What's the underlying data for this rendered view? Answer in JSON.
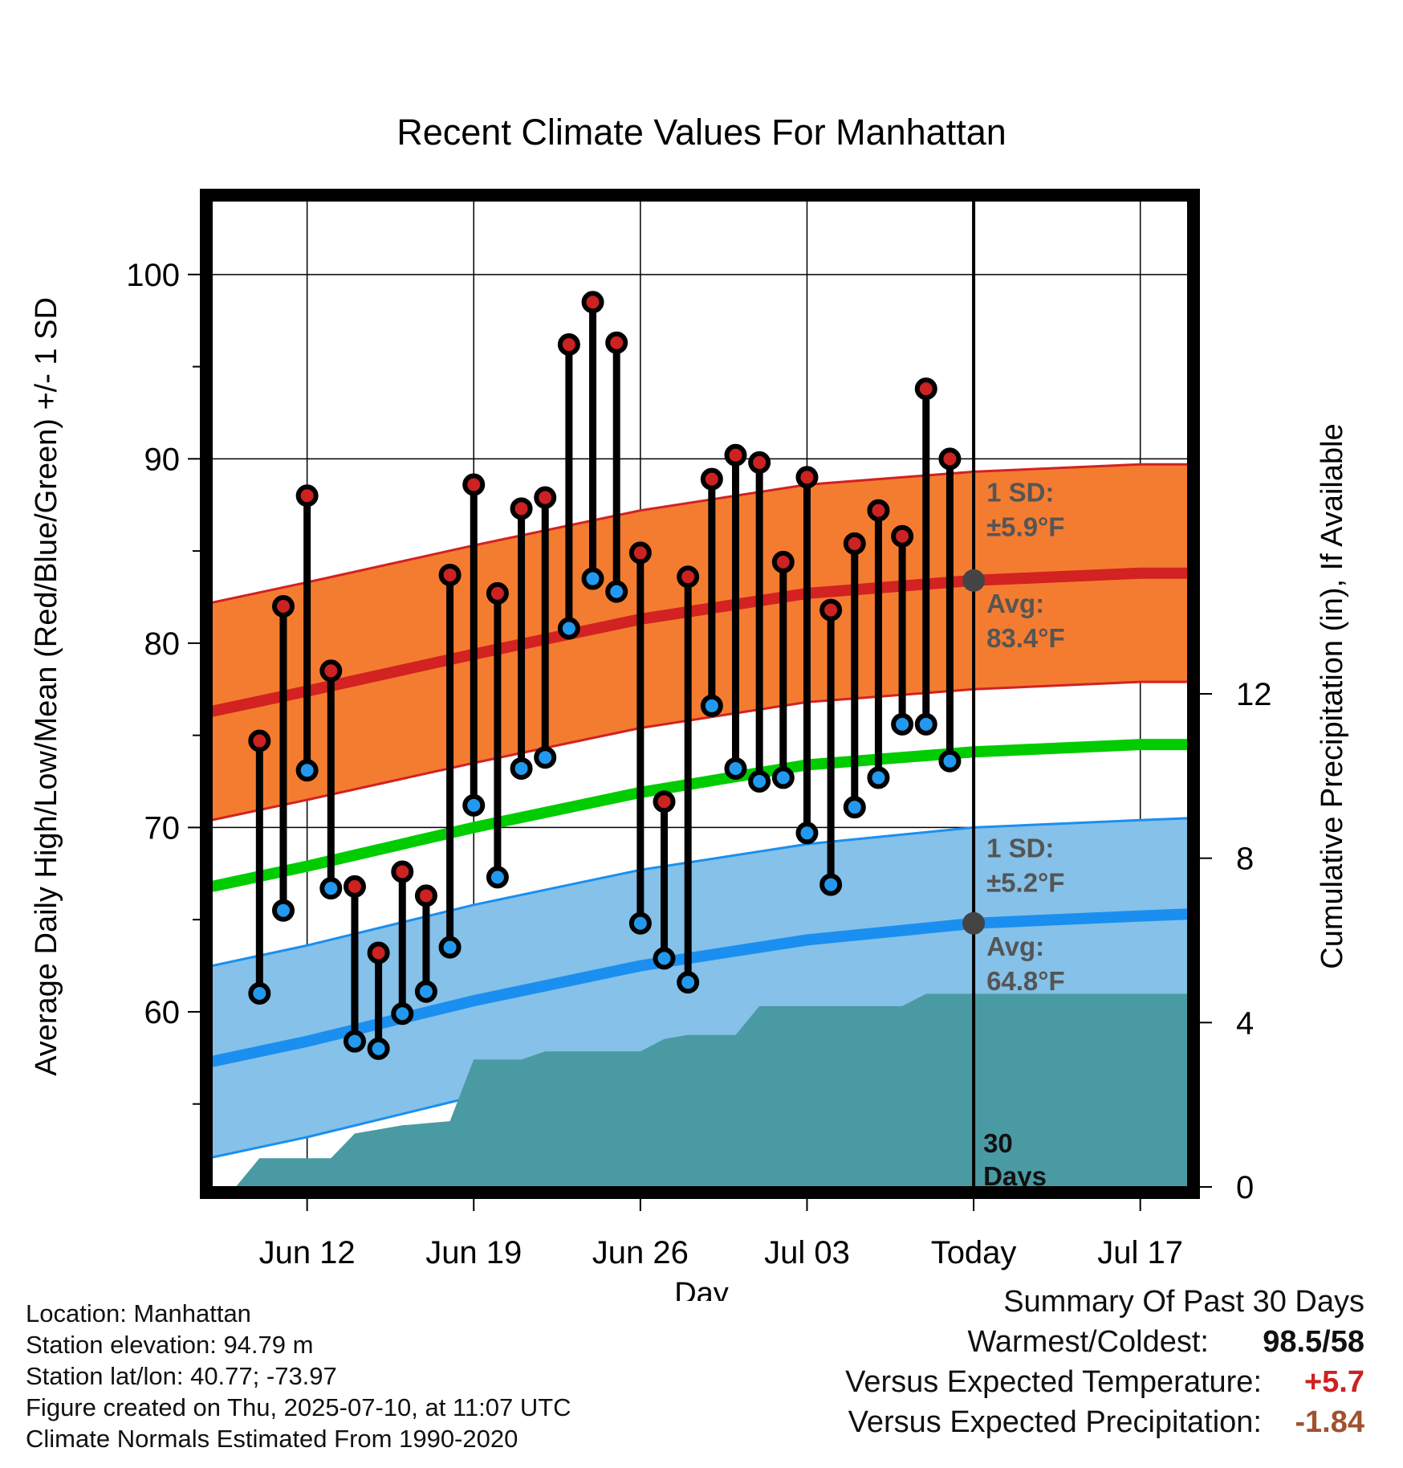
{
  "chart_data": {
    "type": "line",
    "title": "Recent Climate Values For Manhattan",
    "xlabel": "Day",
    "ylabel": "Average Daily High/Low/Mean (Red/Blue/Green) +/- 1 SD",
    "y2label": "Cumulative Precipitation (in), If Available",
    "ylim": [
      50.5,
      104
    ],
    "y_ticks": [
      60,
      70,
      80,
      90,
      100
    ],
    "y2lim": [
      0,
      24
    ],
    "y2_ticks": [
      0,
      4,
      8,
      12
    ],
    "x_ticks": [
      {
        "date": "2025-06-12",
        "label": "Jun 12"
      },
      {
        "date": "2025-06-19",
        "label": "Jun 19"
      },
      {
        "date": "2025-06-26",
        "label": "Jun 26"
      },
      {
        "date": "2025-07-03",
        "label": "Jul 03"
      },
      {
        "date": "2025-07-10",
        "label": "Today"
      },
      {
        "date": "2025-07-17",
        "label": "Jul 17"
      }
    ],
    "xlim": [
      "2025-06-08",
      "2025-07-19"
    ],
    "grid": true,
    "today": "2025-07-10",
    "dates": [
      "2025-06-10",
      "2025-06-11",
      "2025-06-12",
      "2025-06-13",
      "2025-06-14",
      "2025-06-15",
      "2025-06-16",
      "2025-06-17",
      "2025-06-18",
      "2025-06-19",
      "2025-06-20",
      "2025-06-21",
      "2025-06-22",
      "2025-06-23",
      "2025-06-24",
      "2025-06-25",
      "2025-06-26",
      "2025-06-27",
      "2025-06-28",
      "2025-06-29",
      "2025-06-30",
      "2025-07-01",
      "2025-07-02",
      "2025-07-03",
      "2025-07-04",
      "2025-07-05",
      "2025-07-06",
      "2025-07-07",
      "2025-07-08",
      "2025-07-09"
    ],
    "series": [
      {
        "name": "Daily High",
        "color": "#cc2222",
        "values": [
          74.7,
          82,
          88,
          78.5,
          66.8,
          63.2,
          67.6,
          66.3,
          83.7,
          88.6,
          82.7,
          87.3,
          87.9,
          96.2,
          98.5,
          96.3,
          84.9,
          71.4,
          83.6,
          88.9,
          90.2,
          89.8,
          84.4,
          89,
          81.8,
          85.4,
          87.2,
          85.8,
          93.8,
          90
        ]
      },
      {
        "name": "Daily Low",
        "color": "#2299ee",
        "values": [
          61,
          65.5,
          73.1,
          66.7,
          58.4,
          58,
          59.9,
          61.1,
          63.5,
          71.2,
          67.3,
          73.2,
          73.8,
          80.8,
          83.5,
          82.8,
          64.8,
          62.9,
          61.6,
          76.6,
          73.2,
          72.5,
          72.7,
          69.7,
          66.9,
          71.1,
          72.7,
          75.6,
          75.6,
          73.6
        ]
      }
    ],
    "normals": {
      "dates": [
        "2025-06-08",
        "2025-06-12",
        "2025-06-19",
        "2025-06-26",
        "2025-07-03",
        "2025-07-10",
        "2025-07-17",
        "2025-07-19"
      ],
      "high_avg": [
        76.3,
        77.4,
        79.4,
        81.3,
        82.7,
        83.4,
        83.8,
        83.8
      ],
      "low_avg": [
        57.3,
        58.4,
        60.6,
        62.5,
        63.9,
        64.8,
        65.2,
        65.3
      ],
      "mean_avg": [
        66.8,
        67.9,
        70,
        71.9,
        73.4,
        74.1,
        74.5,
        74.5
      ],
      "high_sd": 5.9,
      "low_sd": 5.2,
      "colors": {
        "high_band": "#f47c30",
        "high_line": "#d22222",
        "low_band": "#85c1e8",
        "low_line": "#1a8ff0",
        "mean_line": "#00cc00"
      }
    },
    "precipitation": {
      "color": "#4a9aa3",
      "dates": [
        "2025-06-09",
        "2025-06-10",
        "2025-06-13",
        "2025-06-14",
        "2025-06-16",
        "2025-06-18",
        "2025-06-19",
        "2025-06-21",
        "2025-06-22",
        "2025-06-26",
        "2025-06-27",
        "2025-06-28",
        "2025-06-30",
        "2025-07-01",
        "2025-07-02",
        "2025-07-07",
        "2025-07-08",
        "2025-07-09",
        "2025-07-19"
      ],
      "cumulative": [
        0,
        0.7,
        0.7,
        1.3,
        1.5,
        1.6,
        3.1,
        3.1,
        3.3,
        3.3,
        3.6,
        3.7,
        3.7,
        4.4,
        4.4,
        4.4,
        4.7,
        4.7,
        4.7
      ]
    },
    "annotations": {
      "high_sd_label": "1 SD:",
      "high_sd_value": "±5.9°F",
      "high_avg_label": "Avg:",
      "high_avg_value": "83.4°F",
      "low_sd_label": "1 SD:",
      "low_sd_value": "±5.2°F",
      "low_avg_label": "Avg:",
      "low_avg_value": "64.8°F",
      "precip_label_1": "30",
      "precip_label_2": "Days",
      "annotation_color": "#555555"
    }
  },
  "info": {
    "location": "Location: Manhattan",
    "elevation": "Station elevation: 94.79 m",
    "latlon": "Station lat/lon: 40.77; -73.97",
    "created": "Figure created on Thu, 2025-07-10, at 11:07 UTC",
    "normals": "Climate Normals Estimated From 1990-2020"
  },
  "summary": {
    "title": "Summary Of Past 30 Days",
    "warm_label": "Warmest/Coldest:",
    "warm_value": "98.5/58",
    "temp_label": "Versus Expected Temperature:",
    "temp_value": "+5.7",
    "temp_color": "#cc2222",
    "precip_label": "Versus Expected Precipitation:",
    "precip_value": "-1.84",
    "precip_color": "#a0522d"
  }
}
